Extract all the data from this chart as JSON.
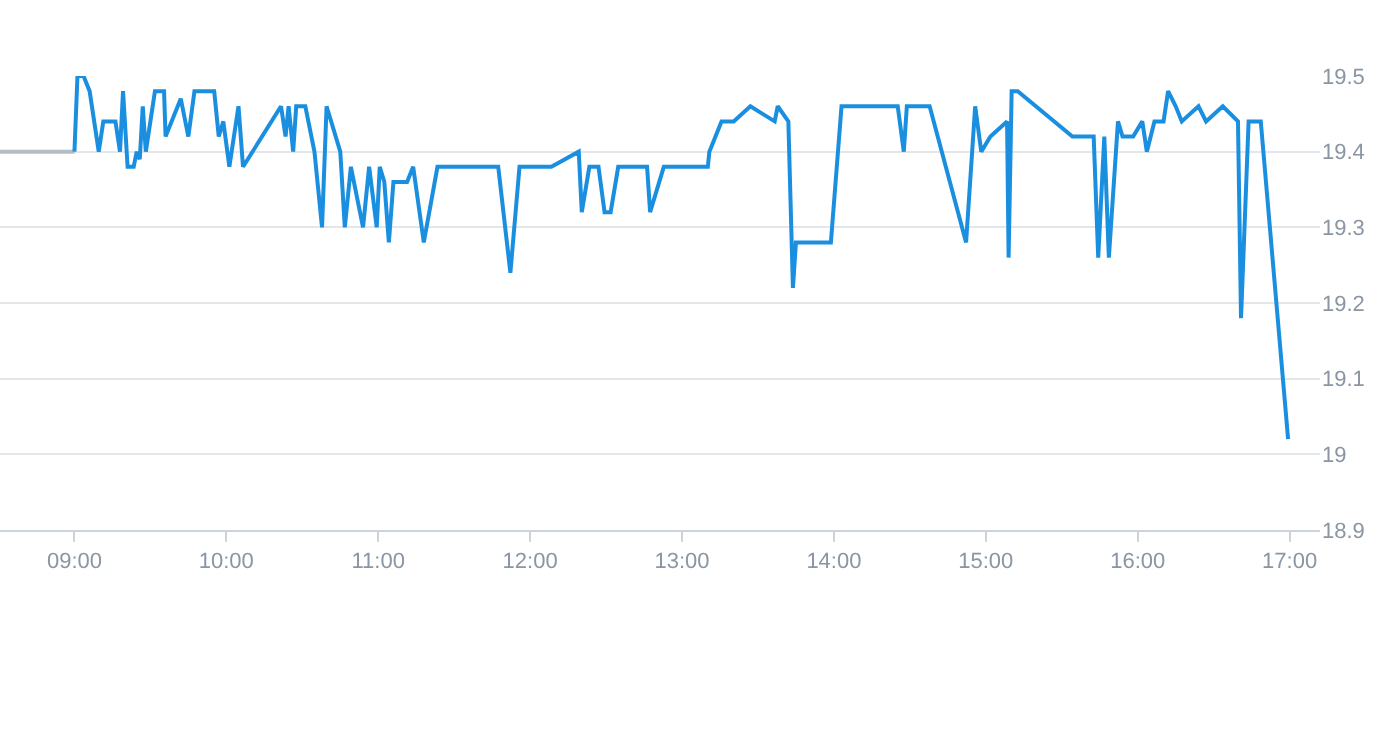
{
  "chart_data": {
    "type": "line",
    "series": [
      {
        "color": "#b4bcc4",
        "x": [
          8.51,
          9.0
        ],
        "values": [
          19.4,
          19.4
        ]
      },
      {
        "color": "#1a8fe0",
        "x": [
          9.0,
          9.02,
          9.06,
          9.1,
          9.16,
          9.19,
          9.27,
          9.3,
          9.32,
          9.35,
          9.39,
          9.41,
          9.43,
          9.45,
          9.47,
          9.53,
          9.59,
          9.6,
          9.7,
          9.75,
          9.79,
          9.92,
          9.95,
          9.98,
          10.02,
          10.08,
          10.11,
          10.36,
          10.39,
          10.41,
          10.44,
          10.46,
          10.52,
          10.58,
          10.63,
          10.66,
          10.75,
          10.78,
          10.82,
          10.9,
          10.94,
          10.99,
          11.01,
          11.04,
          11.07,
          11.1,
          11.19,
          11.23,
          11.3,
          11.39,
          11.79,
          11.87,
          11.93,
          12.14,
          12.32,
          12.34,
          12.39,
          12.45,
          12.49,
          12.53,
          12.58,
          12.77,
          12.79,
          12.88,
          13.17,
          13.18,
          13.26,
          13.34,
          13.45,
          13.61,
          13.63,
          13.7,
          13.73,
          13.75,
          13.98,
          14.05,
          14.42,
          14.46,
          14.48,
          14.63,
          14.87,
          14.93,
          14.97,
          15.03,
          15.14,
          15.15,
          15.17,
          15.21,
          15.57,
          15.71,
          15.74,
          15.78,
          15.81,
          15.87,
          15.9,
          15.97,
          16.03,
          16.06,
          16.11,
          16.17,
          16.2,
          16.25,
          16.29,
          16.4,
          16.45,
          16.56,
          16.66,
          16.68,
          16.73,
          16.81,
          16.99
        ],
        "values": [
          19.4,
          19.5,
          19.5,
          19.48,
          19.4,
          19.44,
          19.44,
          19.4,
          19.48,
          19.38,
          19.38,
          19.4,
          19.39,
          19.46,
          19.4,
          19.48,
          19.48,
          19.42,
          19.47,
          19.42,
          19.48,
          19.48,
          19.42,
          19.44,
          19.38,
          19.46,
          19.38,
          19.46,
          19.42,
          19.46,
          19.4,
          19.46,
          19.46,
          19.4,
          19.3,
          19.46,
          19.4,
          19.3,
          19.38,
          19.3,
          19.38,
          19.3,
          19.38,
          19.36,
          19.28,
          19.36,
          19.36,
          19.38,
          19.28,
          19.38,
          19.38,
          19.24,
          19.38,
          19.38,
          19.4,
          19.32,
          19.38,
          19.38,
          19.32,
          19.32,
          19.38,
          19.38,
          19.32,
          19.38,
          19.38,
          19.4,
          19.44,
          19.44,
          19.46,
          19.44,
          19.46,
          19.44,
          19.22,
          19.28,
          19.28,
          19.46,
          19.46,
          19.4,
          19.46,
          19.46,
          19.28,
          19.46,
          19.4,
          19.42,
          19.44,
          19.26,
          19.48,
          19.48,
          19.42,
          19.42,
          19.26,
          19.42,
          19.26,
          19.44,
          19.42,
          19.42,
          19.44,
          19.4,
          19.44,
          19.44,
          19.48,
          19.46,
          19.44,
          19.46,
          19.44,
          19.46,
          19.44,
          19.18,
          19.44,
          19.44,
          19.02
        ]
      }
    ],
    "xlim": [
      8.51,
      17.2
    ],
    "xticks": [
      {
        "value": 9,
        "label": "09:00"
      },
      {
        "value": 10,
        "label": "10:00"
      },
      {
        "value": 11,
        "label": "11:00"
      },
      {
        "value": 12,
        "label": "12:00"
      },
      {
        "value": 13,
        "label": "13:00"
      },
      {
        "value": 14,
        "label": "14:00"
      },
      {
        "value": 15,
        "label": "15:00"
      },
      {
        "value": 16,
        "label": "16:00"
      },
      {
        "value": 17,
        "label": "17:00"
      }
    ],
    "ylim": [
      18.9,
      19.5
    ],
    "yticks": [
      18.9,
      19,
      19.1,
      19.2,
      19.3,
      19.4,
      19.5
    ],
    "grid": "y",
    "marker": "none",
    "line_style": "solid"
  }
}
